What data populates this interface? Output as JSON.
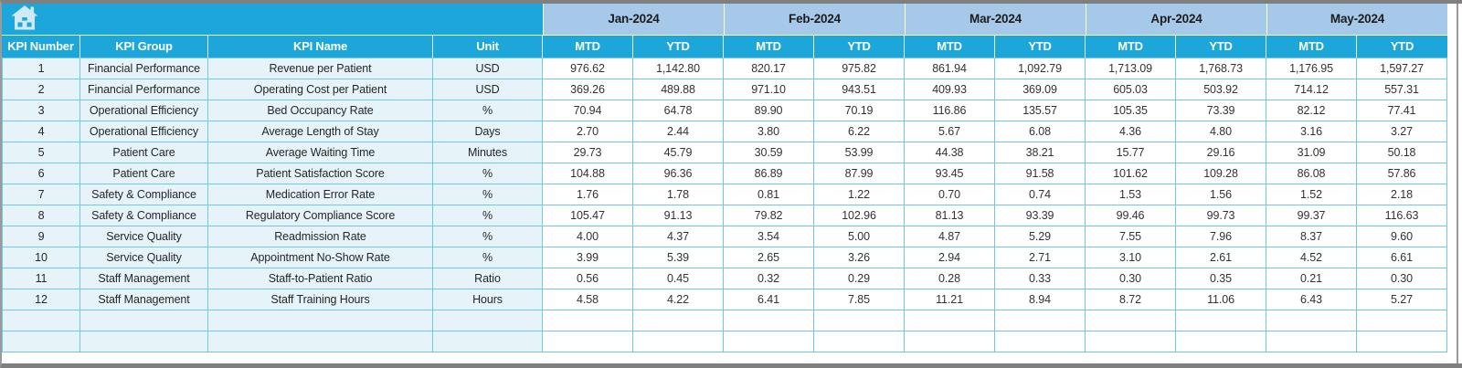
{
  "app": {
    "view": "kpi-spreadsheet-dashboard"
  },
  "icons": {
    "corner": "home-icon"
  },
  "header": {
    "left_columns": [
      "KPI Number",
      "KPI Group",
      "KPI Name",
      "Unit"
    ],
    "months": [
      "Jan-2024",
      "Feb-2024",
      "Mar-2024",
      "Apr-2024",
      "May-2024"
    ],
    "sub_columns": [
      "MTD",
      "YTD"
    ]
  },
  "rows": [
    {
      "number": "1",
      "group": "Financial Performance",
      "name": "Revenue per Patient",
      "unit": "USD",
      "values": [
        "976.62",
        "1,142.80",
        "820.17",
        "975.82",
        "861.94",
        "1,092.79",
        "1,713.09",
        "1,768.73",
        "1,176.95",
        "1,597.27"
      ]
    },
    {
      "number": "2",
      "group": "Financial Performance",
      "name": "Operating Cost per Patient",
      "unit": "USD",
      "values": [
        "369.26",
        "489.88",
        "971.10",
        "943.51",
        "409.93",
        "369.09",
        "605.03",
        "503.92",
        "714.12",
        "557.31"
      ]
    },
    {
      "number": "3",
      "group": "Operational Efficiency",
      "name": "Bed Occupancy Rate",
      "unit": "%",
      "values": [
        "70.94",
        "64.78",
        "89.90",
        "70.19",
        "116.86",
        "135.57",
        "105.35",
        "73.39",
        "82.12",
        "77.41"
      ]
    },
    {
      "number": "4",
      "group": "Operational Efficiency",
      "name": "Average Length of Stay",
      "unit": "Days",
      "values": [
        "2.70",
        "2.44",
        "3.80",
        "6.22",
        "5.67",
        "6.08",
        "4.36",
        "4.80",
        "3.16",
        "3.27"
      ]
    },
    {
      "number": "5",
      "group": "Patient Care",
      "name": "Average Waiting Time",
      "unit": "Minutes",
      "values": [
        "29.73",
        "45.79",
        "30.59",
        "53.99",
        "44.38",
        "38.21",
        "15.77",
        "29.16",
        "31.09",
        "50.18"
      ]
    },
    {
      "number": "6",
      "group": "Patient Care",
      "name": "Patient Satisfaction Score",
      "unit": "%",
      "values": [
        "104.88",
        "96.36",
        "86.89",
        "87.99",
        "93.45",
        "91.58",
        "101.62",
        "109.28",
        "86.08",
        "57.86"
      ]
    },
    {
      "number": "7",
      "group": "Safety & Compliance",
      "name": "Medication Error Rate",
      "unit": "%",
      "values": [
        "1.76",
        "1.78",
        "0.81",
        "1.22",
        "0.70",
        "0.74",
        "1.53",
        "1.56",
        "1.52",
        "2.18"
      ]
    },
    {
      "number": "8",
      "group": "Safety & Compliance",
      "name": "Regulatory Compliance Score",
      "unit": "%",
      "values": [
        "105.47",
        "91.13",
        "79.82",
        "102.96",
        "81.13",
        "93.39",
        "99.46",
        "99.73",
        "99.37",
        "116.63"
      ]
    },
    {
      "number": "9",
      "group": "Service Quality",
      "name": "Readmission Rate",
      "unit": "%",
      "values": [
        "4.00",
        "4.37",
        "3.54",
        "5.00",
        "4.87",
        "5.29",
        "7.55",
        "7.96",
        "8.37",
        "9.60"
      ]
    },
    {
      "number": "10",
      "group": "Service Quality",
      "name": "Appointment No-Show Rate",
      "unit": "%",
      "values": [
        "3.99",
        "5.39",
        "2.65",
        "3.26",
        "2.94",
        "2.71",
        "3.10",
        "2.61",
        "4.52",
        "6.61"
      ]
    },
    {
      "number": "11",
      "group": "Staff Management",
      "name": "Staff-to-Patient Ratio",
      "unit": "Ratio",
      "values": [
        "0.56",
        "0.45",
        "0.32",
        "0.29",
        "0.28",
        "0.33",
        "0.30",
        "0.35",
        "0.21",
        "0.30"
      ]
    },
    {
      "number": "12",
      "group": "Staff Management",
      "name": "Staff Training Hours",
      "unit": "Hours",
      "values": [
        "4.58",
        "4.22",
        "6.41",
        "7.85",
        "11.21",
        "8.94",
        "8.72",
        "11.06",
        "6.43",
        "5.27"
      ]
    }
  ],
  "empty_row_count": 2,
  "colors": {
    "accent_blue": "#1CA6D9",
    "month_band_blue": "#A6C9E9",
    "row_tint_blue": "#E6F4FA",
    "grid_cyan": "#6FC9E4",
    "frame_gray": "#7f7f7f",
    "header_text": "#ffffff",
    "icon_light_blue": "#CFEAF6"
  }
}
